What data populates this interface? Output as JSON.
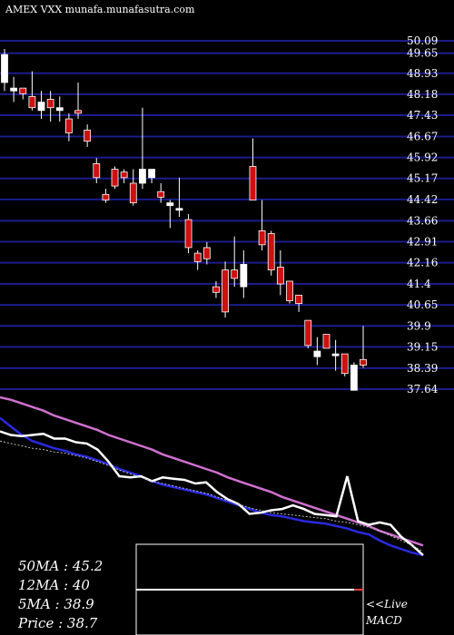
{
  "header": {
    "text": "AMEX VXX munafa.munafasutra.com"
  },
  "stats": {
    "ma50": "50MA : 45.2",
    "ma12": "12MA : 40",
    "ma5": "5MA : 38.9",
    "price": "Price  : 38.7"
  },
  "macd_label": {
    "line1": "<<Live",
    "line2": "MACD"
  },
  "chart_data": {
    "type": "candlestick",
    "title": "AMEX VXX munafa.munafasutra.com",
    "y_ticks": [
      50.09,
      49.65,
      48.93,
      48.18,
      47.43,
      46.67,
      45.92,
      45.17,
      44.42,
      43.66,
      42.91,
      42.16,
      41.4,
      40.65,
      39.9,
      39.15,
      38.39,
      37.64
    ],
    "y_tick_labels": [
      "50.09",
      "49.65",
      "48.93",
      "48.18",
      "47.43",
      "46.67",
      "45.92",
      "45.17",
      "44.42",
      "43.66",
      "42.91",
      "42.16",
      "41.4",
      "40.65",
      "39.9",
      "39.15",
      "38.39",
      "37.64"
    ],
    "ylim": [
      37.64,
      50.09
    ],
    "grid": true,
    "candles": [
      {
        "o": 48.6,
        "h": 49.8,
        "l": 48.3,
        "c": 49.6
      },
      {
        "o": 48.3,
        "h": 48.8,
        "l": 47.9,
        "c": 48.4
      },
      {
        "o": 48.4,
        "h": 48.4,
        "l": 48.0,
        "c": 48.2
      },
      {
        "o": 48.1,
        "h": 49.0,
        "l": 47.6,
        "c": 47.7
      },
      {
        "o": 47.6,
        "h": 48.3,
        "l": 47.3,
        "c": 47.9
      },
      {
        "o": 48.0,
        "h": 48.3,
        "l": 47.2,
        "c": 47.7
      },
      {
        "o": 47.6,
        "h": 48.1,
        "l": 47.2,
        "c": 47.7
      },
      {
        "o": 47.3,
        "h": 47.5,
        "l": 46.5,
        "c": 46.8
      },
      {
        "o": 47.6,
        "h": 48.6,
        "l": 47.3,
        "c": 47.5
      },
      {
        "o": 46.9,
        "h": 47.1,
        "l": 46.3,
        "c": 46.5
      },
      {
        "o": 45.7,
        "h": 45.9,
        "l": 45.0,
        "c": 45.2
      },
      {
        "o": 44.6,
        "h": 44.8,
        "l": 44.3,
        "c": 44.4
      },
      {
        "o": 45.5,
        "h": 45.6,
        "l": 44.8,
        "c": 44.9
      },
      {
        "o": 45.4,
        "h": 45.5,
        "l": 45.0,
        "c": 45.2
      },
      {
        "o": 45.0,
        "h": 45.5,
        "l": 44.2,
        "c": 44.3
      },
      {
        "o": 45.0,
        "h": 47.7,
        "l": 44.8,
        "c": 45.5
      },
      {
        "o": 45.2,
        "h": 45.5,
        "l": 45.0,
        "c": 45.5
      },
      {
        "o": 44.7,
        "h": 45.0,
        "l": 44.3,
        "c": 44.5
      },
      {
        "o": 44.2,
        "h": 44.4,
        "l": 43.4,
        "c": 44.3
      },
      {
        "o": 44.1,
        "h": 45.2,
        "l": 43.8,
        "c": 44.1
      },
      {
        "o": 43.7,
        "h": 43.9,
        "l": 42.5,
        "c": 42.7
      },
      {
        "o": 42.5,
        "h": 42.6,
        "l": 41.9,
        "c": 42.2
      },
      {
        "o": 42.7,
        "h": 42.9,
        "l": 42.1,
        "c": 42.3
      },
      {
        "o": 41.3,
        "h": 41.5,
        "l": 40.9,
        "c": 41.1
      },
      {
        "o": 41.9,
        "h": 42.2,
        "l": 40.2,
        "c": 40.4
      },
      {
        "o": 41.9,
        "h": 43.1,
        "l": 41.3,
        "c": 41.6
      },
      {
        "o": 41.3,
        "h": 42.6,
        "l": 40.9,
        "c": 42.1
      },
      {
        "o": 45.6,
        "h": 46.6,
        "l": 44.4,
        "c": 44.4
      },
      {
        "o": 43.3,
        "h": 44.4,
        "l": 42.6,
        "c": 42.8
      },
      {
        "o": 43.2,
        "h": 43.3,
        "l": 41.7,
        "c": 41.9
      },
      {
        "o": 42.0,
        "h": 42.6,
        "l": 41.0,
        "c": 41.4
      },
      {
        "o": 41.5,
        "h": 41.5,
        "l": 40.7,
        "c": 40.8
      },
      {
        "o": 41.0,
        "h": 41.0,
        "l": 40.4,
        "c": 40.7
      },
      {
        "o": 40.1,
        "h": 40.1,
        "l": 39.1,
        "c": 39.2
      },
      {
        "o": 38.8,
        "h": 39.5,
        "l": 38.5,
        "c": 39.0
      },
      {
        "o": 39.6,
        "h": 39.6,
        "l": 39.1,
        "c": 39.1
      },
      {
        "o": 38.9,
        "h": 39.4,
        "l": 38.3,
        "c": 38.9
      },
      {
        "o": 38.9,
        "h": 38.9,
        "l": 38.1,
        "c": 38.2
      },
      {
        "o": 37.6,
        "h": 38.6,
        "l": 37.6,
        "c": 38.5
      },
      {
        "o": 38.7,
        "h": 39.9,
        "l": 38.4,
        "c": 38.5
      }
    ],
    "ma_panel": {
      "series": [
        {
          "color": "#d070d0",
          "values": [
            100,
            98,
            95,
            92,
            89,
            85,
            82,
            79,
            76,
            73,
            69,
            66,
            63,
            60,
            57,
            53,
            50,
            47,
            44,
            41,
            38,
            34,
            31,
            28,
            25,
            22,
            18,
            15,
            12,
            9,
            6,
            3,
            0,
            -3,
            -6,
            -10,
            -13,
            -16,
            -19,
            -22
          ]
        },
        {
          "color": "#2a2ae0",
          "values": [
            83,
            76,
            69,
            64,
            61,
            58,
            56,
            53,
            51,
            48,
            45,
            41,
            38,
            35,
            31,
            28,
            26,
            24,
            22,
            20,
            17,
            14,
            11,
            8,
            5,
            3,
            2,
            0,
            -2,
            -3,
            -4,
            -6,
            -8,
            -11,
            -13,
            -18,
            -22,
            -25,
            -28,
            -30
          ]
        },
        {
          "color": "#ffffff",
          "values": [
            72,
            69,
            68,
            69,
            70,
            66,
            66,
            63,
            62,
            57,
            47,
            35,
            34,
            35,
            31,
            34,
            33,
            32,
            29,
            30,
            22,
            16,
            12,
            4,
            5,
            7,
            8,
            11,
            8,
            4,
            3,
            2,
            35,
            -2,
            -5,
            -3,
            -5,
            -15,
            -22,
            -30
          ]
        },
        {
          "color": "#bbbbbb",
          "dashed": true,
          "values": [
            64,
            62,
            60,
            58,
            57,
            55,
            54,
            52,
            50,
            47,
            44,
            40,
            37,
            34,
            31,
            29,
            27,
            25,
            23,
            21,
            18,
            15,
            12,
            9,
            7,
            5,
            4,
            3,
            2,
            1,
            0,
            -2,
            -3,
            -5,
            -7,
            -10,
            -14,
            -18,
            -22,
            -27
          ]
        }
      ]
    },
    "macd_panel": {
      "line_value": 0.2
    }
  }
}
